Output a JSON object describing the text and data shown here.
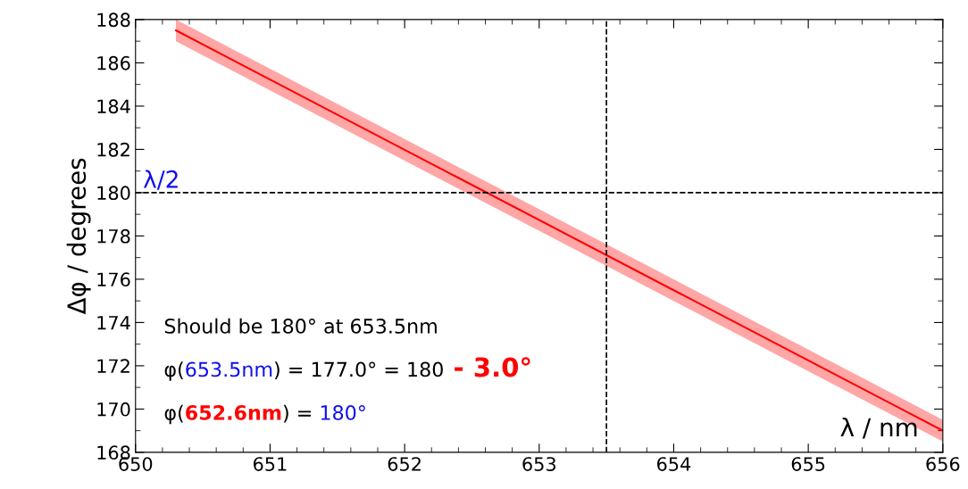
{
  "chart_data": {
    "type": "line",
    "xlabel": "λ / nm",
    "ylabel": "Δφ / degrees",
    "x": [
      650.3,
      656
    ],
    "series": [
      {
        "color": "#ff0000",
        "values": [
          187.5,
          169.0
        ],
        "lower": [
          187.0,
          168.5
        ],
        "upper": [
          188.0,
          169.5
        ]
      }
    ],
    "xlim": [
      650,
      656
    ],
    "xticks": [
      650,
      651,
      652,
      653,
      654,
      655,
      656
    ],
    "ylim": [
      168,
      188
    ],
    "yticks": [
      168,
      170,
      172,
      174,
      176,
      178,
      180,
      182,
      184,
      186,
      188
    ],
    "ref_lines": [
      {
        "axis": "y",
        "value": 180,
        "label": "λ/2",
        "color": "#000000",
        "line_style": "dashed"
      },
      {
        "axis": "x",
        "value": 653.5,
        "color": "#000000",
        "line_style": "dashed"
      }
    ],
    "annotations": [
      "Should be 180° at 653.5nm",
      "φ(",
      "653.5nm",
      ") = 177.0° = 180",
      " - 3.0°",
      "φ(",
      "652.6nm",
      ") = ",
      "180°"
    ],
    "grid": false,
    "marker": "none",
    "line_style": "solid"
  }
}
